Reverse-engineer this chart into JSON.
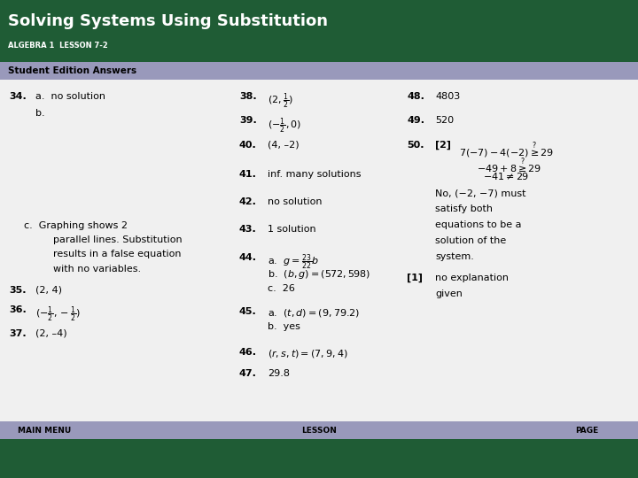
{
  "title": "Solving Systems Using Substitution",
  "subtitle": "ALGEBRA 1  LESSON 7-2",
  "section_label": "Student Edition Answers",
  "bg_dark": "#1f5c35",
  "bg_light": "#f0f0f0",
  "header_bg": "#1f5c35",
  "section_bg": "#9999bb",
  "footer_bg": "#9999bb",
  "footer_dark": "#1f5c35",
  "pearson_bg": "#003087"
}
